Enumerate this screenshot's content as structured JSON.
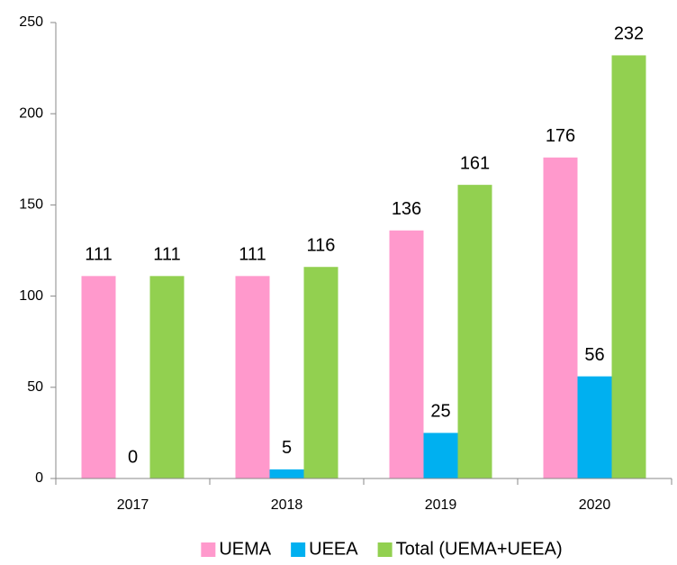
{
  "chart_data": {
    "type": "bar",
    "categories": [
      "2017",
      "2018",
      "2019",
      "2020"
    ],
    "series": [
      {
        "name": "UEMA",
        "color": "#ff99cc",
        "values": [
          111,
          111,
          136,
          176
        ]
      },
      {
        "name": "UEEA",
        "color": "#00b0f0",
        "values": [
          0,
          5,
          25,
          56
        ]
      },
      {
        "name": "Total (UEMA+UEEA)",
        "color": "#92d050",
        "values": [
          111,
          116,
          161,
          232
        ]
      }
    ],
    "ylim": [
      0,
      250
    ],
    "yticks": [
      0,
      50,
      100,
      150,
      200,
      250
    ],
    "grid": false,
    "legend": "bottom"
  }
}
